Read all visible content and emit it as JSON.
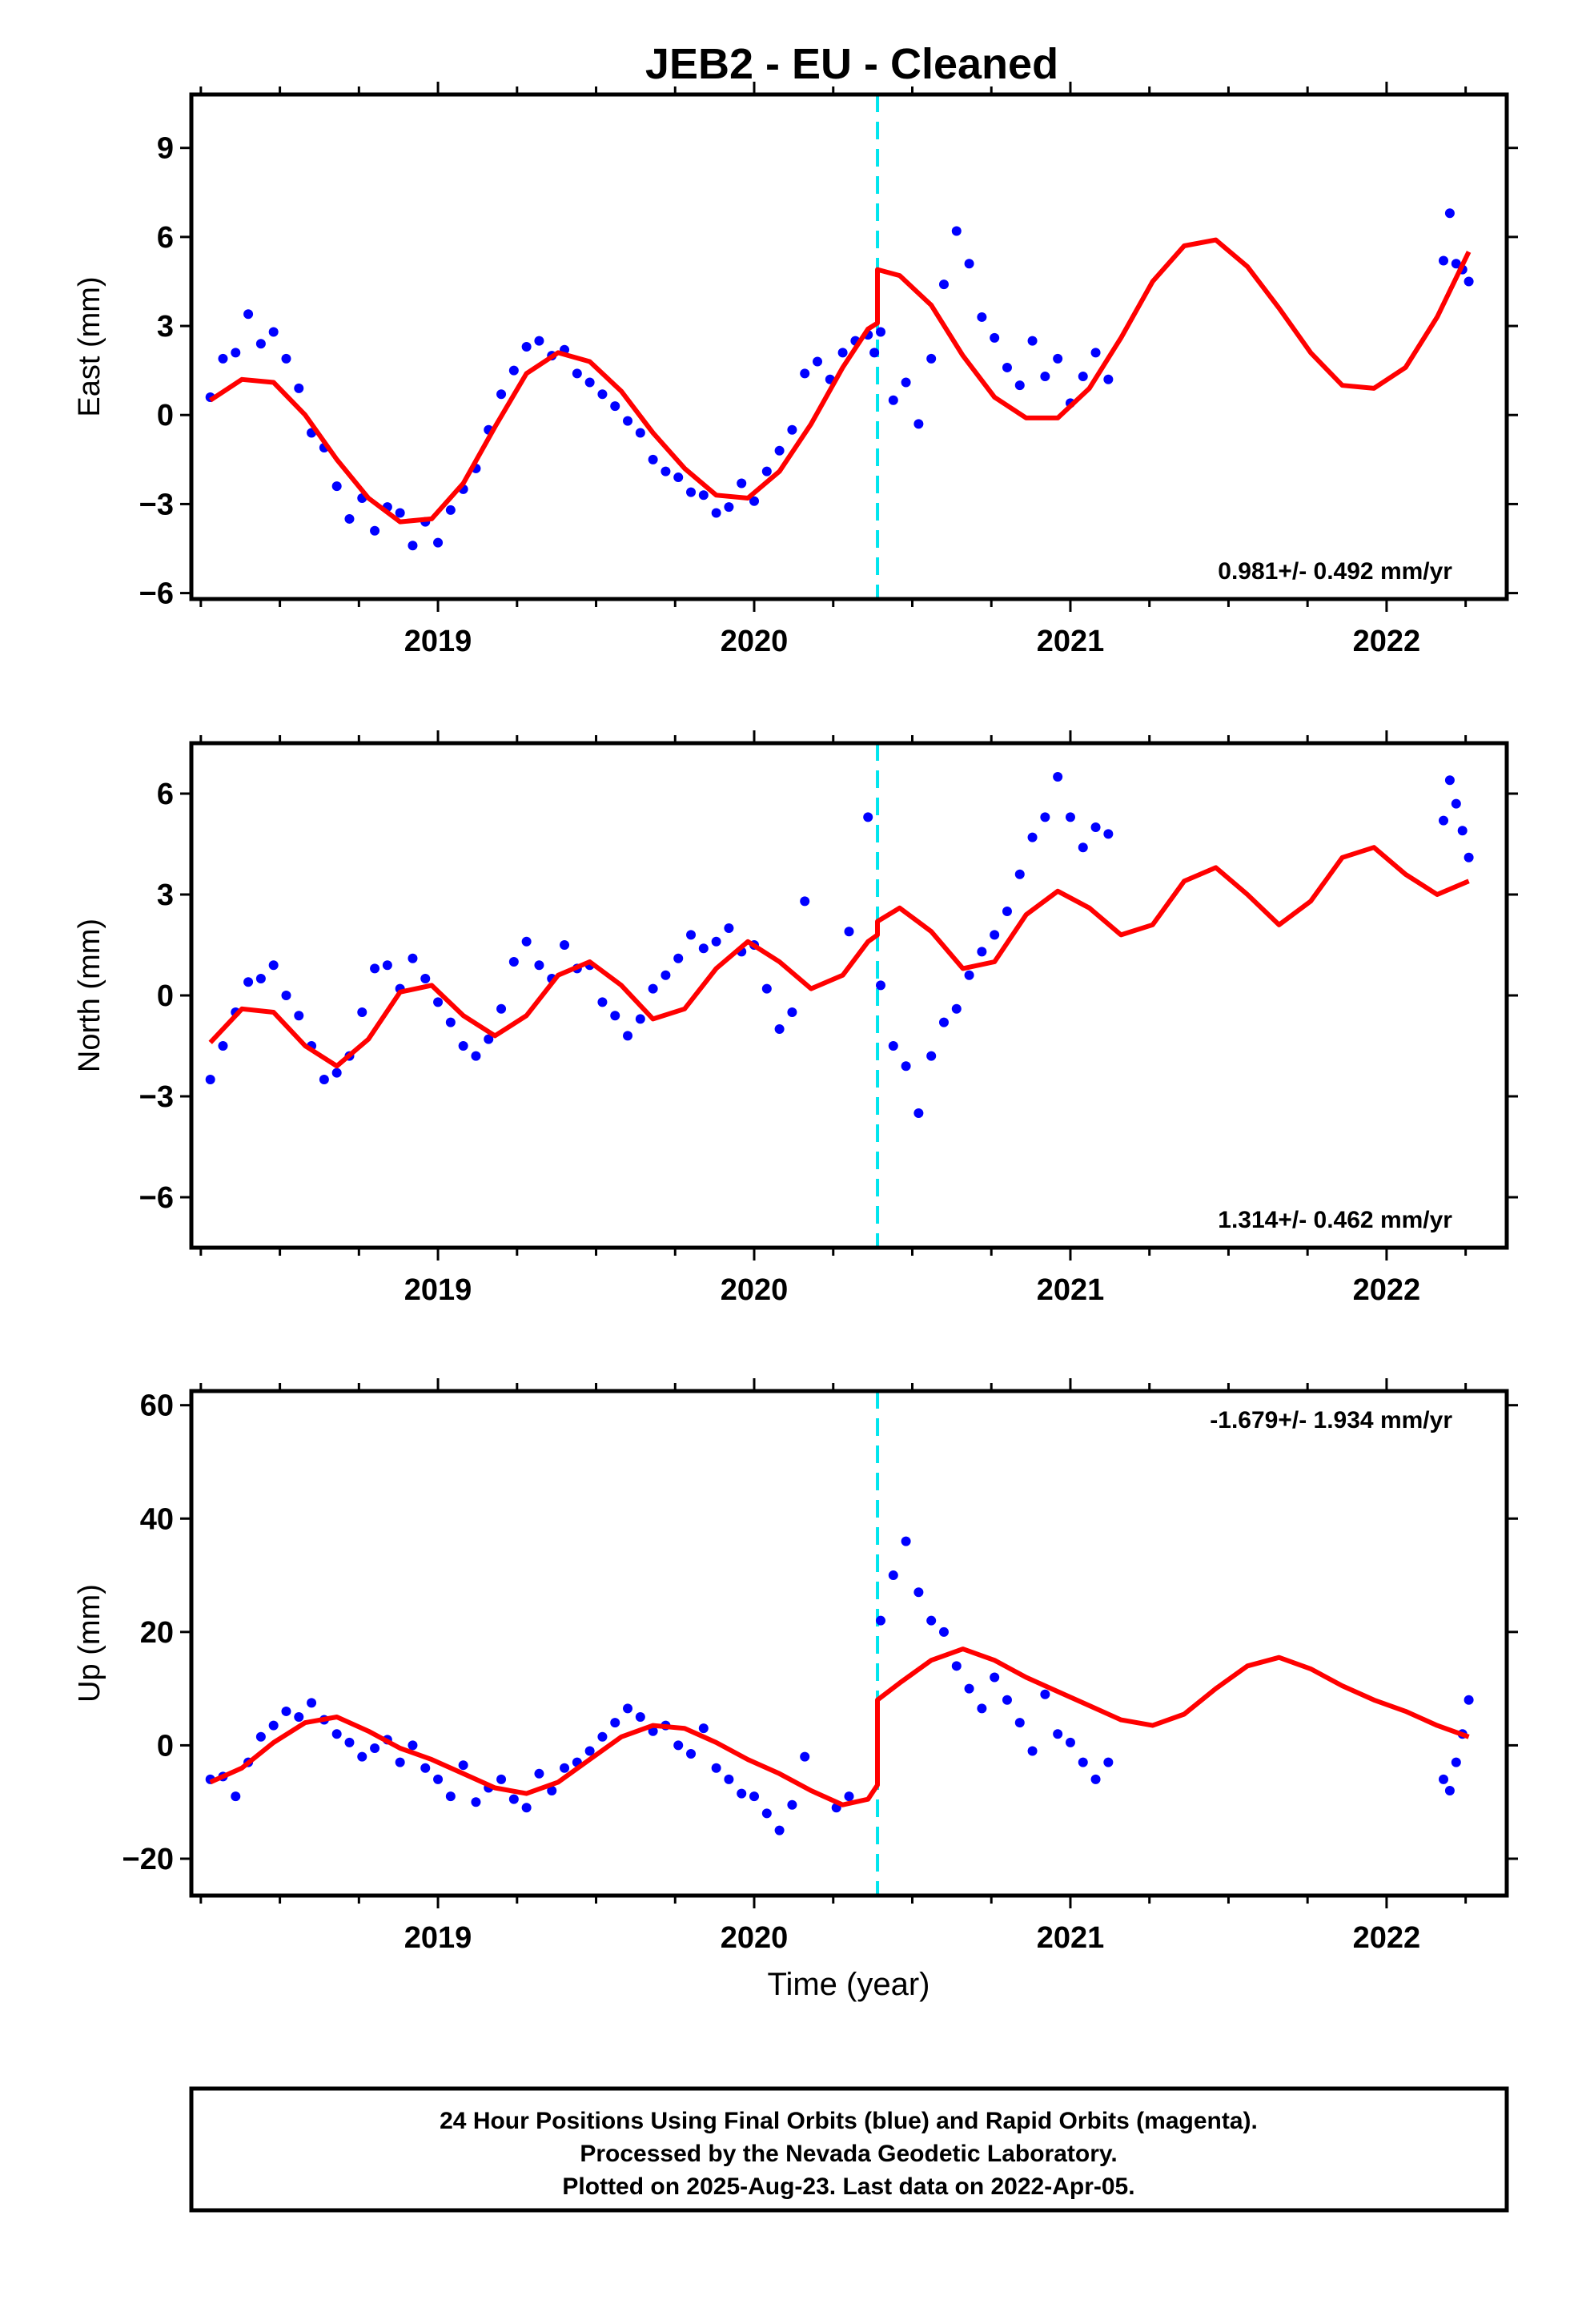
{
  "title": "JEB2  - EU - Cleaned",
  "colors": {
    "data_points": "#0000ff",
    "model_fit": "#ff0000",
    "offset_line": "#00e5ee",
    "frame": "#000000"
  },
  "footer": {
    "line1": "24 Hour Positions Using Final Orbits (blue) and Rapid Orbits (magenta).",
    "line2": "Processed by the Nevada Geodetic Laboratory.",
    "line3": "Plotted on 2025-Aug-23. Last data on 2022-Apr-05."
  },
  "chart_data": [
    {
      "type": "scatter",
      "name": "east",
      "ylabel": "East (mm)",
      "xlabel": "",
      "xlim": [
        2018.22,
        2022.38
      ],
      "ylim": [
        -6.2,
        10.8
      ],
      "yticks": [
        -6,
        -3,
        0,
        3,
        6,
        9
      ],
      "xticks": [
        2019,
        2020,
        2021,
        2022
      ],
      "rate_text": "0.981+/- 0.492 mm/yr",
      "rate_position": "bottom-right",
      "offset_epoch": 2020.39,
      "series": [
        {
          "label": "Final Orbits",
          "kind": "points",
          "x": [
            2018.28,
            2018.32,
            2018.36,
            2018.4,
            2018.44,
            2018.48,
            2018.52,
            2018.56,
            2018.6,
            2018.64,
            2018.68,
            2018.72,
            2018.76,
            2018.8,
            2018.84,
            2018.88,
            2018.92,
            2018.96,
            2019.0,
            2019.04,
            2019.08,
            2019.12,
            2019.16,
            2019.2,
            2019.24,
            2019.28,
            2019.32,
            2019.36,
            2019.4,
            2019.44,
            2019.48,
            2019.52,
            2019.56,
            2019.6,
            2019.64,
            2019.68,
            2019.72,
            2019.76,
            2019.8,
            2019.84,
            2019.88,
            2019.92,
            2019.96,
            2020.0,
            2020.04,
            2020.08,
            2020.12,
            2020.16,
            2020.2,
            2020.24,
            2020.28,
            2020.32,
            2020.36,
            2020.38,
            2020.4,
            2020.44,
            2020.48,
            2020.52,
            2020.56,
            2020.6,
            2020.64,
            2020.68,
            2020.72,
            2020.76,
            2020.8,
            2020.84,
            2020.88,
            2020.92,
            2020.96,
            2021.0,
            2021.04,
            2021.08,
            2021.12,
            2022.18,
            2022.2,
            2022.22,
            2022.24,
            2022.26
          ],
          "y": [
            0.6,
            1.9,
            2.1,
            3.4,
            2.4,
            2.8,
            1.9,
            0.9,
            -0.6,
            -1.1,
            -2.4,
            -3.5,
            -2.8,
            -3.9,
            -3.1,
            -3.3,
            -4.4,
            -3.6,
            -4.3,
            -3.2,
            -2.5,
            -1.8,
            -0.5,
            0.7,
            1.5,
            2.3,
            2.5,
            2.0,
            2.2,
            1.4,
            1.1,
            0.7,
            0.3,
            -0.2,
            -0.6,
            -1.5,
            -1.9,
            -2.1,
            -2.6,
            -2.7,
            -3.3,
            -3.1,
            -2.3,
            -2.9,
            -1.9,
            -1.2,
            -0.5,
            1.4,
            1.8,
            1.2,
            2.1,
            2.5,
            2.7,
            2.1,
            2.8,
            0.5,
            1.1,
            -0.3,
            1.9,
            4.4,
            6.2,
            5.1,
            3.3,
            2.6,
            1.6,
            1.0,
            2.5,
            1.3,
            1.9,
            0.4,
            1.3,
            2.1,
            1.2,
            5.2,
            6.8,
            5.1,
            4.9,
            4.5
          ]
        },
        {
          "label": "Model",
          "kind": "line",
          "x": [
            2018.28,
            2018.38,
            2018.48,
            2018.58,
            2018.68,
            2018.78,
            2018.88,
            2018.98,
            2019.08,
            2019.18,
            2019.28,
            2019.38,
            2019.48,
            2019.58,
            2019.68,
            2019.78,
            2019.88,
            2019.98,
            2020.08,
            2020.18,
            2020.28,
            2020.36,
            2020.39,
            2020.39,
            2020.46,
            2020.56,
            2020.66,
            2020.76,
            2020.86,
            2020.96,
            2021.06,
            2021.16,
            2021.26,
            2021.36,
            2021.46,
            2021.56,
            2021.66,
            2021.76,
            2021.86,
            2021.96,
            2022.06,
            2022.16,
            2022.26
          ],
          "y": [
            0.5,
            1.2,
            1.1,
            0.0,
            -1.5,
            -2.8,
            -3.6,
            -3.5,
            -2.3,
            -0.4,
            1.4,
            2.1,
            1.8,
            0.8,
            -0.6,
            -1.8,
            -2.7,
            -2.8,
            -1.9,
            -0.3,
            1.6,
            2.9,
            3.1,
            4.9,
            4.7,
            3.7,
            2.0,
            0.6,
            -0.1,
            -0.1,
            0.9,
            2.6,
            4.5,
            5.7,
            5.9,
            5.0,
            3.6,
            2.1,
            1.0,
            0.9,
            1.6,
            3.3,
            5.5
          ]
        }
      ]
    },
    {
      "type": "scatter",
      "name": "north",
      "ylabel": "North (mm)",
      "xlabel": "",
      "xlim": [
        2018.22,
        2022.38
      ],
      "ylim": [
        -7.5,
        7.5
      ],
      "yticks": [
        -6,
        -3,
        0,
        3,
        6
      ],
      "xticks": [
        2019,
        2020,
        2021,
        2022
      ],
      "rate_text": "1.314+/- 0.462 mm/yr",
      "rate_position": "bottom-right",
      "offset_epoch": 2020.39,
      "series": [
        {
          "label": "Final Orbits",
          "kind": "points",
          "x": [
            2018.28,
            2018.32,
            2018.36,
            2018.4,
            2018.44,
            2018.48,
            2018.52,
            2018.56,
            2018.6,
            2018.64,
            2018.68,
            2018.72,
            2018.76,
            2018.8,
            2018.84,
            2018.88,
            2018.92,
            2018.96,
            2019.0,
            2019.04,
            2019.08,
            2019.12,
            2019.16,
            2019.2,
            2019.24,
            2019.28,
            2019.32,
            2019.36,
            2019.4,
            2019.44,
            2019.48,
            2019.52,
            2019.56,
            2019.6,
            2019.64,
            2019.68,
            2019.72,
            2019.76,
            2019.8,
            2019.84,
            2019.88,
            2019.92,
            2019.96,
            2020.0,
            2020.04,
            2020.08,
            2020.12,
            2020.16,
            2020.3,
            2020.36,
            2020.4,
            2020.44,
            2020.48,
            2020.52,
            2020.56,
            2020.6,
            2020.64,
            2020.68,
            2020.72,
            2020.76,
            2020.8,
            2020.84,
            2020.88,
            2020.92,
            2020.96,
            2021.0,
            2021.04,
            2021.08,
            2021.12,
            2022.18,
            2022.2,
            2022.22,
            2022.24,
            2022.26
          ],
          "y": [
            -2.5,
            -1.5,
            -0.5,
            0.4,
            0.5,
            0.9,
            0.0,
            -0.6,
            -1.5,
            -2.5,
            -2.3,
            -1.8,
            -0.5,
            0.8,
            0.9,
            0.2,
            1.1,
            0.5,
            -0.2,
            -0.8,
            -1.5,
            -1.8,
            -1.3,
            -0.4,
            1.0,
            1.6,
            0.9,
            0.5,
            1.5,
            0.8,
            0.9,
            -0.2,
            -0.6,
            -1.2,
            -0.7,
            0.2,
            0.6,
            1.1,
            1.8,
            1.4,
            1.6,
            2.0,
            1.3,
            1.5,
            0.2,
            -1.0,
            -0.5,
            2.8,
            1.9,
            5.3,
            0.3,
            -1.5,
            -2.1,
            -3.5,
            -1.8,
            -0.8,
            -0.4,
            0.6,
            1.3,
            1.8,
            2.5,
            3.6,
            4.7,
            5.3,
            6.5,
            5.3,
            4.4,
            5.0,
            4.8,
            5.2,
            6.4,
            5.7,
            4.9,
            4.1
          ]
        },
        {
          "label": "Model",
          "kind": "line",
          "x": [
            2018.28,
            2018.38,
            2018.48,
            2018.58,
            2018.68,
            2018.78,
            2018.88,
            2018.98,
            2019.08,
            2019.18,
            2019.28,
            2019.38,
            2019.48,
            2019.58,
            2019.68,
            2019.78,
            2019.88,
            2019.98,
            2020.08,
            2020.18,
            2020.28,
            2020.36,
            2020.39,
            2020.39,
            2020.46,
            2020.56,
            2020.66,
            2020.76,
            2020.86,
            2020.96,
            2021.06,
            2021.16,
            2021.26,
            2021.36,
            2021.46,
            2021.56,
            2021.66,
            2021.76,
            2021.86,
            2021.96,
            2022.06,
            2022.16,
            2022.26
          ],
          "y": [
            -1.4,
            -0.4,
            -0.5,
            -1.5,
            -2.1,
            -1.3,
            0.1,
            0.3,
            -0.6,
            -1.2,
            -0.6,
            0.6,
            1.0,
            0.3,
            -0.7,
            -0.4,
            0.8,
            1.6,
            1.0,
            0.2,
            0.6,
            1.6,
            1.8,
            2.2,
            2.6,
            1.9,
            0.8,
            1.0,
            2.4,
            3.1,
            2.6,
            1.8,
            2.1,
            3.4,
            3.8,
            3.0,
            2.1,
            2.8,
            4.1,
            4.4,
            3.6,
            3.0,
            3.4
          ]
        }
      ]
    },
    {
      "type": "scatter",
      "name": "up",
      "ylabel": "Up (mm)",
      "xlabel": "Time (year)",
      "xlim": [
        2018.22,
        2022.38
      ],
      "ylim": [
        -26.5,
        62.5
      ],
      "yticks": [
        -20,
        0,
        20,
        40,
        60
      ],
      "xticks": [
        2019,
        2020,
        2021,
        2022
      ],
      "rate_text": "-1.679+/- 1.934 mm/yr",
      "rate_position": "top-right",
      "offset_epoch": 2020.39,
      "series": [
        {
          "label": "Final Orbits",
          "kind": "points",
          "x": [
            2018.28,
            2018.32,
            2018.36,
            2018.4,
            2018.44,
            2018.48,
            2018.52,
            2018.56,
            2018.6,
            2018.64,
            2018.68,
            2018.72,
            2018.76,
            2018.8,
            2018.84,
            2018.88,
            2018.92,
            2018.96,
            2019.0,
            2019.04,
            2019.08,
            2019.12,
            2019.16,
            2019.2,
            2019.24,
            2019.28,
            2019.32,
            2019.36,
            2019.4,
            2019.44,
            2019.48,
            2019.52,
            2019.56,
            2019.6,
            2019.64,
            2019.68,
            2019.72,
            2019.76,
            2019.8,
            2019.84,
            2019.88,
            2019.92,
            2019.96,
            2020.0,
            2020.04,
            2020.08,
            2020.12,
            2020.16,
            2020.26,
            2020.3,
            2020.4,
            2020.44,
            2020.48,
            2020.52,
            2020.56,
            2020.6,
            2020.64,
            2020.68,
            2020.72,
            2020.76,
            2020.8,
            2020.84,
            2020.88,
            2020.92,
            2020.96,
            2021.0,
            2021.04,
            2021.08,
            2021.12,
            2022.18,
            2022.2,
            2022.22,
            2022.24,
            2022.26
          ],
          "y": [
            -6.0,
            -5.5,
            -9.0,
            -3.0,
            1.5,
            3.5,
            6.0,
            5.0,
            7.5,
            4.5,
            2.0,
            0.5,
            -2.0,
            -0.5,
            1.0,
            -3.0,
            0.0,
            -4.0,
            -6.0,
            -9.0,
            -3.5,
            -10.0,
            -7.5,
            -6.0,
            -9.5,
            -11.0,
            -5.0,
            -8.0,
            -4.0,
            -3.0,
            -1.0,
            1.5,
            4.0,
            6.5,
            5.0,
            2.5,
            3.5,
            0.0,
            -1.5,
            3.0,
            -4.0,
            -6.0,
            -8.5,
            -9.0,
            -12.0,
            -15.0,
            -10.5,
            -2.0,
            -11.0,
            -9.0,
            22.0,
            30.0,
            36.0,
            27.0,
            22.0,
            20.0,
            14.0,
            10.0,
            6.5,
            12.0,
            8.0,
            4.0,
            -1.0,
            9.0,
            2.0,
            0.5,
            -3.0,
            -6.0,
            -3.0,
            -6.0,
            -8.0,
            -3.0,
            2.0,
            8.0
          ]
        },
        {
          "label": "Model",
          "kind": "line",
          "x": [
            2018.28,
            2018.38,
            2018.48,
            2018.58,
            2018.68,
            2018.78,
            2018.88,
            2018.98,
            2019.08,
            2019.18,
            2019.28,
            2019.38,
            2019.48,
            2019.58,
            2019.68,
            2019.78,
            2019.88,
            2019.98,
            2020.08,
            2020.18,
            2020.28,
            2020.36,
            2020.39,
            2020.39,
            2020.46,
            2020.56,
            2020.66,
            2020.76,
            2020.86,
            2020.96,
            2021.06,
            2021.16,
            2021.26,
            2021.36,
            2021.46,
            2021.56,
            2021.66,
            2021.76,
            2021.86,
            2021.96,
            2022.06,
            2022.16,
            2022.26
          ],
          "y": [
            -6.5,
            -4.0,
            0.5,
            4.0,
            5.0,
            2.5,
            -0.5,
            -2.5,
            -5.0,
            -7.5,
            -8.5,
            -6.5,
            -2.5,
            1.5,
            3.5,
            3.0,
            0.5,
            -2.5,
            -5.0,
            -8.0,
            -10.5,
            -9.5,
            -7.0,
            8.0,
            11.0,
            15.0,
            17.0,
            15.0,
            12.0,
            9.5,
            7.0,
            4.5,
            3.5,
            5.5,
            10.0,
            14.0,
            15.5,
            13.5,
            10.5,
            8.0,
            6.0,
            3.5,
            1.5
          ]
        }
      ]
    }
  ]
}
